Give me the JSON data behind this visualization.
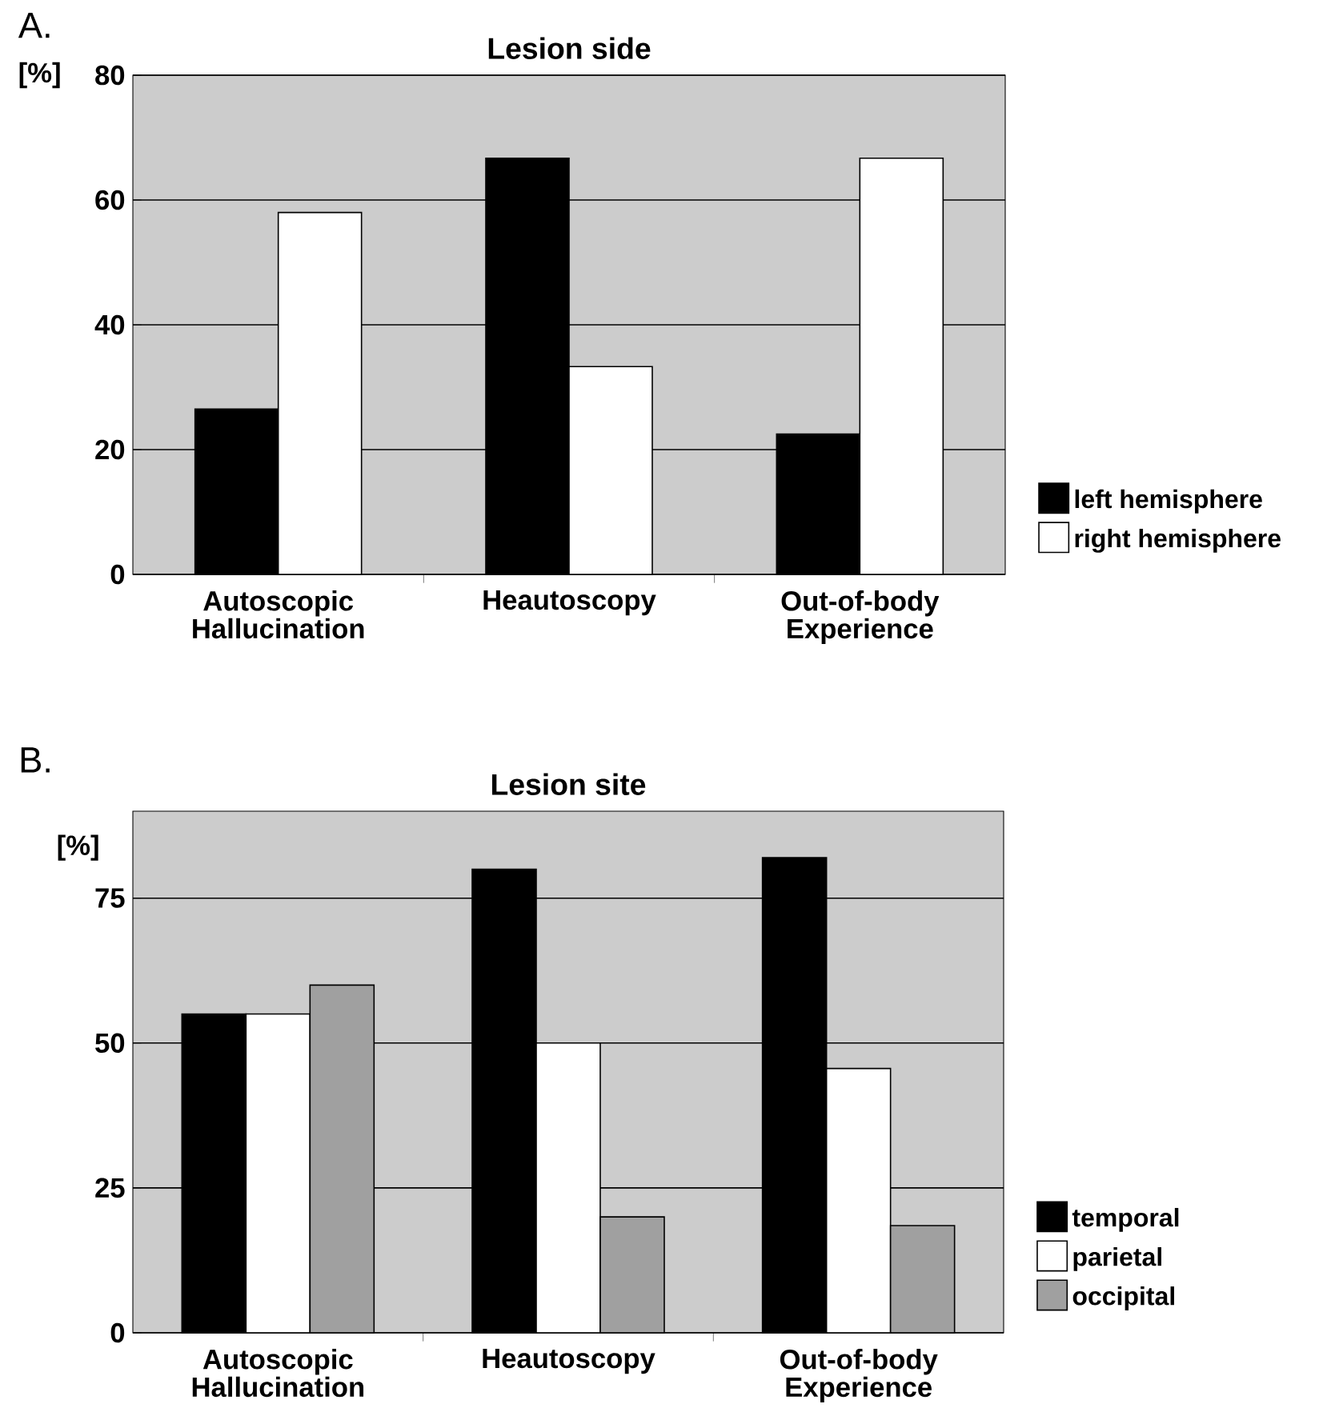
{
  "chart_data": [
    {
      "type": "bar",
      "title": "Lesion side",
      "ylabel": "[%]",
      "annotations": [
        "A."
      ],
      "categories": [
        "Autoscopic Hallucination",
        "Heautoscopy",
        "Out-of-body Experience"
      ],
      "series": [
        {
          "name": "left hemisphere",
          "color": "#000000",
          "values": [
            26.5,
            66.7,
            22.5
          ]
        },
        {
          "name": "right hemisphere",
          "color": "#ffffff",
          "values": [
            58,
            33.3,
            66.7
          ]
        }
      ],
      "ylim": [
        0,
        80
      ],
      "yticks": [
        0,
        20,
        40,
        60,
        80
      ],
      "grid": "y",
      "legend": "right"
    },
    {
      "type": "bar",
      "title": "Lesion site",
      "ylabel": "[%]",
      "annotations": [
        "B."
      ],
      "categories": [
        "Autoscopic Hallucination",
        "Heautoscopy",
        "Out-of-body Experience"
      ],
      "series": [
        {
          "name": "temporal",
          "color": "#000000",
          "values": [
            55,
            80,
            82
          ]
        },
        {
          "name": "parietal",
          "color": "#ffffff",
          "values": [
            55,
            50,
            45.6
          ]
        },
        {
          "name": "occipital",
          "color": "#a0a0a0",
          "values": [
            60,
            20,
            18.5
          ]
        }
      ],
      "ylim": [
        0,
        90
      ],
      "yticks": [
        0,
        25,
        50,
        75
      ],
      "grid": "y",
      "legend": "right"
    }
  ]
}
